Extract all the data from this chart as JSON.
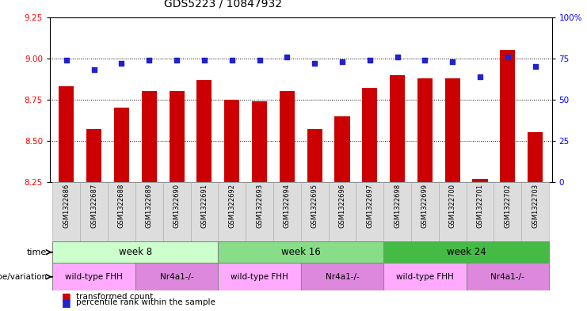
{
  "title": "GDS5223 / 10847932",
  "samples": [
    "GSM1322686",
    "GSM1322687",
    "GSM1322688",
    "GSM1322689",
    "GSM1322690",
    "GSM1322691",
    "GSM1322692",
    "GSM1322693",
    "GSM1322694",
    "GSM1322695",
    "GSM1322696",
    "GSM1322697",
    "GSM1322698",
    "GSM1322699",
    "GSM1322700",
    "GSM1322701",
    "GSM1322702",
    "GSM1322703"
  ],
  "transformed_count": [
    8.83,
    8.57,
    8.7,
    8.8,
    8.8,
    8.87,
    8.75,
    8.74,
    8.8,
    8.57,
    8.65,
    8.82,
    8.9,
    8.88,
    8.88,
    8.27,
    9.05,
    8.55
  ],
  "percentile_rank": [
    74,
    68,
    72,
    74,
    74,
    74,
    74,
    74,
    76,
    72,
    73,
    74,
    76,
    74,
    73,
    64,
    76,
    70
  ],
  "ylim_left": [
    8.25,
    9.25
  ],
  "ylim_right": [
    0,
    100
  ],
  "yticks_left": [
    8.25,
    8.5,
    8.75,
    9.0,
    9.25
  ],
  "yticks_right": [
    0,
    25,
    50,
    75,
    100
  ],
  "bar_color": "#cc0000",
  "dot_color": "#2222cc",
  "week8_color": "#ccffcc",
  "week16_color": "#88dd88",
  "week24_color": "#44bb44",
  "wt_color": "#ffaaff",
  "nr_color": "#dd88dd",
  "sample_bg": "#dddddd",
  "time_groups": [
    {
      "label": "week 8",
      "start": 0,
      "end": 5
    },
    {
      "label": "week 16",
      "start": 6,
      "end": 11
    },
    {
      "label": "week 24",
      "start": 12,
      "end": 17
    }
  ],
  "genotype_groups": [
    {
      "label": "wild-type FHH",
      "start": 0,
      "end": 2
    },
    {
      "label": "Nr4a1-/-",
      "start": 3,
      "end": 5
    },
    {
      "label": "wild-type FHH",
      "start": 6,
      "end": 8
    },
    {
      "label": "Nr4a1-/-",
      "start": 9,
      "end": 11
    },
    {
      "label": "wild-type FHH",
      "start": 12,
      "end": 14
    },
    {
      "label": "Nr4a1-/-",
      "start": 15,
      "end": 17
    }
  ],
  "legend_transformed": "transformed count",
  "legend_percentile": "percentile rank within the sample"
}
